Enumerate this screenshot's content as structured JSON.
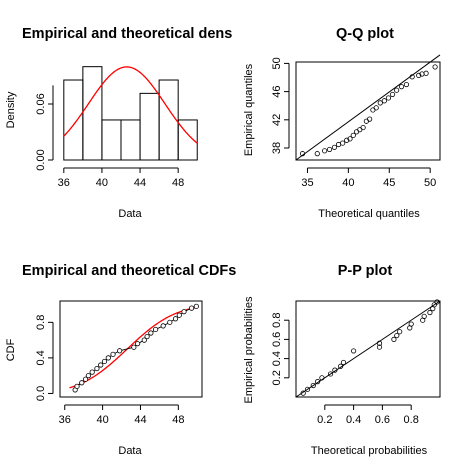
{
  "chart_data": [
    {
      "type": "bar",
      "title": "Empirical and theoretical dens",
      "xlabel": "Data",
      "ylabel": "Density",
      "xlim": [
        35.6,
        50.5
      ],
      "ylim": [
        0,
        0.105
      ],
      "x_ticks": [
        "36",
        "40",
        "44",
        "48"
      ],
      "x_tick_values": [
        36,
        40,
        44,
        48
      ],
      "y_ticks": [
        "0.00",
        "0.06"
      ],
      "y_tick_values": [
        0,
        0.06
      ],
      "bins": [
        {
          "from": 36,
          "to": 38,
          "density": 0.0857
        },
        {
          "from": 38,
          "to": 40,
          "density": 0.1
        },
        {
          "from": 40,
          "to": 42,
          "density": 0.0429
        },
        {
          "from": 42,
          "to": 44,
          "density": 0.0429
        },
        {
          "from": 44,
          "to": 46,
          "density": 0.0714
        },
        {
          "from": 46,
          "to": 48,
          "density": 0.0857
        },
        {
          "from": 48,
          "to": 50,
          "density": 0.0429
        }
      ],
      "curve": {
        "type": "normal",
        "mean": 42.6,
        "sd": 4.0,
        "color": "#ff0000"
      }
    },
    {
      "type": "scatter",
      "title": "Q-Q plot",
      "xlabel": "Theoretical quantiles",
      "ylabel": "Empirical quantiles",
      "xlim": [
        33.6,
        51.2
      ],
      "ylim": [
        36.3,
        50.2
      ],
      "x_ticks": [
        "35",
        "40",
        "45",
        "50"
      ],
      "x_tick_values": [
        35,
        40,
        45,
        50
      ],
      "y_ticks": [
        "38",
        "42",
        "46",
        "50"
      ],
      "y_tick_values": [
        38,
        42,
        46,
        50
      ],
      "points": [
        [
          34.4,
          37.2
        ],
        [
          36.2,
          37.2
        ],
        [
          37.1,
          37.6
        ],
        [
          37.7,
          37.8
        ],
        [
          38.3,
          38.1
        ],
        [
          38.8,
          38.5
        ],
        [
          39.3,
          38.7
        ],
        [
          39.8,
          39.1
        ],
        [
          40.2,
          39.3
        ],
        [
          40.6,
          39.8
        ],
        [
          41.0,
          40.3
        ],
        [
          41.4,
          40.6
        ],
        [
          41.8,
          40.9
        ],
        [
          42.2,
          41.8
        ],
        [
          42.6,
          42.1
        ],
        [
          43.0,
          43.4
        ],
        [
          43.4,
          43.7
        ],
        [
          43.9,
          44.4
        ],
        [
          44.4,
          44.7
        ],
        [
          44.9,
          45.1
        ],
        [
          45.4,
          45.6
        ],
        [
          45.9,
          46.2
        ],
        [
          46.5,
          46.7
        ],
        [
          47.1,
          47.0
        ],
        [
          47.8,
          48.1
        ],
        [
          48.6,
          48.3
        ],
        [
          49.0,
          48.5
        ],
        [
          49.5,
          48.6
        ],
        [
          50.6,
          49.5
        ]
      ],
      "reference_line": [
        [
          33.6,
          33.6
        ],
        [
          51.2,
          51.2
        ]
      ]
    },
    {
      "type": "line",
      "title": "Empirical and theoretical CDFs",
      "xlabel": "Data",
      "ylabel": "CDF",
      "xlim": [
        35.5,
        50.5
      ],
      "ylim": [
        -0.04,
        1.04
      ],
      "x_ticks": [
        "36",
        "40",
        "44",
        "48"
      ],
      "x_tick_values": [
        36,
        40,
        44,
        48
      ],
      "y_ticks": [
        "0.0",
        "0.4",
        "0.8"
      ],
      "y_tick_values": [
        0,
        0.4,
        0.8
      ],
      "empirical_points": [
        [
          37.1,
          0.04
        ],
        [
          37.3,
          0.08
        ],
        [
          37.8,
          0.12
        ],
        [
          38.2,
          0.16
        ],
        [
          38.5,
          0.2
        ],
        [
          38.9,
          0.24
        ],
        [
          39.4,
          0.28
        ],
        [
          39.8,
          0.32
        ],
        [
          40.2,
          0.36
        ],
        [
          40.6,
          0.4
        ],
        [
          41.1,
          0.44
        ],
        [
          41.8,
          0.48
        ],
        [
          43.3,
          0.52
        ],
        [
          43.7,
          0.56
        ],
        [
          44.4,
          0.6
        ],
        [
          44.7,
          0.64
        ],
        [
          45.1,
          0.68
        ],
        [
          45.6,
          0.72
        ],
        [
          46.4,
          0.76
        ],
        [
          47.1,
          0.8
        ],
        [
          47.7,
          0.84
        ],
        [
          48.1,
          0.88
        ],
        [
          48.6,
          0.92
        ],
        [
          49.4,
          0.96
        ],
        [
          49.9,
          0.98
        ]
      ],
      "empirical_color": "#000000",
      "theoretical_curve": {
        "type": "normal",
        "mean": 42.6,
        "sd": 4.0,
        "color": "#ff0000"
      }
    },
    {
      "type": "scatter",
      "title": "P-P plot",
      "xlabel": "Theoretical probabilities",
      "ylabel": "Empirical probabilities",
      "xlim": [
        0.0,
        1.0
      ],
      "ylim": [
        0.0,
        1.0
      ],
      "x_ticks": [
        "0.2",
        "0.4",
        "0.6",
        "0.8"
      ],
      "x_tick_values": [
        0.2,
        0.4,
        0.6,
        0.8
      ],
      "y_ticks": [
        "0.2",
        "0.4",
        "0.6",
        "0.8"
      ],
      "y_tick_values": [
        0.2,
        0.4,
        0.6,
        0.8
      ],
      "points": [
        [
          0.05,
          0.04
        ],
        [
          0.08,
          0.08
        ],
        [
          0.12,
          0.12
        ],
        [
          0.15,
          0.16
        ],
        [
          0.18,
          0.2
        ],
        [
          0.24,
          0.24
        ],
        [
          0.27,
          0.28
        ],
        [
          0.31,
          0.32
        ],
        [
          0.33,
          0.36
        ],
        [
          0.4,
          0.48
        ],
        [
          0.58,
          0.52
        ],
        [
          0.58,
          0.56
        ],
        [
          0.68,
          0.6
        ],
        [
          0.7,
          0.64
        ],
        [
          0.72,
          0.68
        ],
        [
          0.79,
          0.72
        ],
        [
          0.8,
          0.76
        ],
        [
          0.88,
          0.8
        ],
        [
          0.89,
          0.84
        ],
        [
          0.93,
          0.88
        ],
        [
          0.95,
          0.92
        ],
        [
          0.96,
          0.96
        ],
        [
          0.98,
          0.99
        ]
      ],
      "reference_line": [
        [
          0,
          0
        ],
        [
          1,
          1
        ]
      ]
    }
  ]
}
